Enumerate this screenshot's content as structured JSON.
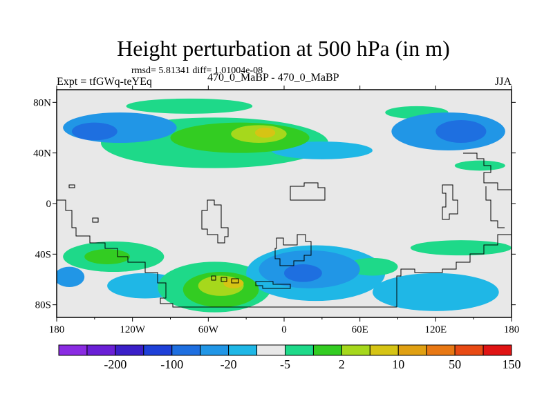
{
  "title": "Height perturbation at 500 hPa (in m)",
  "stats": "rmsd= 5.81341 diff= 1.01004e-08",
  "expt": "Expt = tfGWq-teYEq",
  "subtitle": "470_0_MaBP - 470_0_MaBP",
  "season": "JJA",
  "chart_data": {
    "type": "heatmap",
    "title": "Height perturbation at 500 hPa (in m)",
    "units": "m",
    "x_range": [
      -180,
      180
    ],
    "y_range": [
      -90,
      90
    ],
    "x_ticks": [
      {
        "value": -180,
        "label": "180"
      },
      {
        "value": -120,
        "label": "120W"
      },
      {
        "value": -60,
        "label": "60W"
      },
      {
        "value": 0,
        "label": "0"
      },
      {
        "value": 60,
        "label": "60E"
      },
      {
        "value": 120,
        "label": "120E"
      },
      {
        "value": 180,
        "label": "180"
      }
    ],
    "y_ticks": [
      {
        "value": 80,
        "label": "80N"
      },
      {
        "value": 40,
        "label": "40N"
      },
      {
        "value": 0,
        "label": "0"
      },
      {
        "value": -40,
        "label": "40S"
      },
      {
        "value": -80,
        "label": "80S"
      }
    ],
    "colorbar": {
      "colors": [
        "#8a2be2",
        "#6a1fd6",
        "#3a1fc8",
        "#1e40d8",
        "#1e6fe0",
        "#2196e6",
        "#1fb7e6",
        "#e8e8e8",
        "#1ed989",
        "#33cc22",
        "#a6d81c",
        "#d6c414",
        "#e0a012",
        "#e87814",
        "#e84a14",
        "#e01414"
      ],
      "labels": [
        {
          "after_index": 1,
          "label": "-200"
        },
        {
          "after_index": 3,
          "label": "-100"
        },
        {
          "after_index": 5,
          "label": "-20"
        },
        {
          "after_index": 7,
          "label": "-5"
        },
        {
          "after_index": 9,
          "label": "2"
        },
        {
          "after_index": 11,
          "label": "10"
        },
        {
          "after_index": 13,
          "label": "50"
        },
        {
          "after_index": 15,
          "label": "150"
        }
      ]
    },
    "features": [
      {
        "name": "arctic-positive-band",
        "level": 1,
        "cx": -75,
        "cy": 77,
        "rx": 50,
        "ry": 6
      },
      {
        "name": "arctic-positive-east",
        "level": 1,
        "cx": 105,
        "cy": 72,
        "rx": 25,
        "ry": 5
      },
      {
        "name": "north-atlantic-negative",
        "level": -2,
        "cx": -130,
        "cy": 60,
        "rx": 45,
        "ry": 12
      },
      {
        "name": "north-atlantic-negative-core",
        "level": -3,
        "cx": -150,
        "cy": 57,
        "rx": 18,
        "ry": 7
      },
      {
        "name": "eurasia-negative",
        "level": -2,
        "cx": 130,
        "cy": 57,
        "rx": 45,
        "ry": 15
      },
      {
        "name": "eurasia-negative-core",
        "level": -3,
        "cx": 140,
        "cy": 57,
        "rx": 20,
        "ry": 9
      },
      {
        "name": "midlat-positive-ridge",
        "level": 1,
        "cx": -55,
        "cy": 48,
        "rx": 90,
        "ry": 20
      },
      {
        "name": "midlat-positive-ridge-2",
        "level": 2,
        "cx": -35,
        "cy": 52,
        "rx": 55,
        "ry": 12
      },
      {
        "name": "midlat-positive-ridge-3",
        "level": 3,
        "cx": -20,
        "cy": 55,
        "rx": 22,
        "ry": 7
      },
      {
        "name": "ridge-peak",
        "level": 4,
        "cx": -15,
        "cy": 56,
        "rx": 8,
        "ry": 4
      },
      {
        "name": "north-negative-arc",
        "level": -1,
        "cx": 30,
        "cy": 42,
        "rx": 40,
        "ry": 7
      },
      {
        "name": "pacific-positive-east",
        "level": 1,
        "cx": 155,
        "cy": 30,
        "rx": 20,
        "ry": 4
      },
      {
        "name": "south-negative-west",
        "level": -2,
        "cx": -170,
        "cy": -58,
        "rx": 12,
        "ry": 8
      },
      {
        "name": "south-positive-west",
        "level": 1,
        "cx": -135,
        "cy": -42,
        "rx": 40,
        "ry": 12
      },
      {
        "name": "south-positive-west-core",
        "level": 2,
        "cx": -140,
        "cy": -42,
        "rx": 18,
        "ry": 6
      },
      {
        "name": "south-negative-mid",
        "level": -1,
        "cx": -110,
        "cy": -65,
        "rx": 30,
        "ry": 10
      },
      {
        "name": "south-atlantic-positive",
        "level": 1,
        "cx": -55,
        "cy": -66,
        "rx": 45,
        "ry": 20
      },
      {
        "name": "south-atlantic-positive-2",
        "level": 2,
        "cx": -50,
        "cy": -68,
        "rx": 30,
        "ry": 14
      },
      {
        "name": "south-atlantic-positive-3",
        "level": 3,
        "cx": -50,
        "cy": -65,
        "rx": 18,
        "ry": 8
      },
      {
        "name": "south-atlantic-peak",
        "level": 4,
        "cx": -40,
        "cy": -63,
        "rx": 8,
        "ry": 4
      },
      {
        "name": "indian-ocean-negative",
        "level": -1,
        "cx": 25,
        "cy": -55,
        "rx": 55,
        "ry": 22
      },
      {
        "name": "indian-ocean-negative-2",
        "level": -2,
        "cx": 20,
        "cy": -52,
        "rx": 40,
        "ry": 15
      },
      {
        "name": "indian-ocean-negative-3",
        "level": -3,
        "cx": 15,
        "cy": -55,
        "rx": 15,
        "ry": 7
      },
      {
        "name": "south-positive-east",
        "level": 1,
        "cx": 70,
        "cy": -50,
        "rx": 20,
        "ry": 7
      },
      {
        "name": "south-positive-far-east",
        "level": 1,
        "cx": 140,
        "cy": -35,
        "rx": 40,
        "ry": 6
      },
      {
        "name": "south-negative-east",
        "level": -1,
        "cx": 120,
        "cy": -70,
        "rx": 50,
        "ry": 15
      }
    ]
  }
}
